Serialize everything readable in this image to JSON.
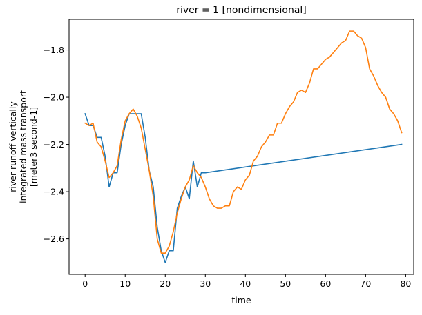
{
  "chart_data": {
    "type": "line",
    "title": "river = 1 [nondimensional]",
    "xlabel": "time",
    "ylabel": [
      "river runoff vertically",
      "integrated mass transport",
      "[meter3 second-1]"
    ],
    "xlim": [
      -4,
      82
    ],
    "ylim": [
      -2.75,
      -1.67
    ],
    "xticks": [
      0,
      10,
      20,
      30,
      40,
      50,
      60,
      70,
      80
    ],
    "yticks": [
      -2.6,
      -2.4,
      -2.2,
      -2.0,
      -1.8
    ],
    "ytick_labels": [
      "−2.6",
      "−2.4",
      "−2.2",
      "−2.0",
      "−1.8"
    ],
    "grid": false,
    "legend": false,
    "series": [
      {
        "color": "#1f77b4",
        "x": [
          0,
          1,
          2,
          3,
          4,
          5,
          6,
          7,
          8,
          9,
          10,
          11,
          12,
          13,
          14,
          15,
          16,
          17,
          18,
          19,
          20,
          21,
          22,
          23,
          24,
          25,
          26,
          27,
          28,
          29,
          30,
          79
        ],
        "y": [
          -2.07,
          -2.12,
          -2.12,
          -2.17,
          -2.17,
          -2.25,
          -2.38,
          -2.32,
          -2.32,
          -2.2,
          -2.12,
          -2.07,
          -2.07,
          -2.07,
          -2.07,
          -2.17,
          -2.31,
          -2.38,
          -2.55,
          -2.65,
          -2.7,
          -2.65,
          -2.65,
          -2.47,
          -2.42,
          -2.38,
          -2.43,
          -2.27,
          -2.38,
          -2.32,
          -2.32,
          -2.2
        ]
      },
      {
        "color": "#ff7f0e",
        "x": [
          0,
          1,
          2,
          3,
          4,
          5,
          6,
          7,
          8,
          9,
          10,
          11,
          12,
          13,
          14,
          15,
          16,
          17,
          18,
          19,
          20,
          21,
          22,
          23,
          24,
          25,
          26,
          27,
          28,
          29,
          30,
          31,
          32,
          33,
          34,
          35,
          36,
          37,
          38,
          39,
          40,
          41,
          42,
          43,
          44,
          45,
          46,
          47,
          48,
          49,
          50,
          51,
          52,
          53,
          54,
          55,
          56,
          57,
          58,
          59,
          60,
          61,
          62,
          63,
          64,
          65,
          66,
          67,
          68,
          69,
          70,
          71,
          72,
          73,
          74,
          75,
          76,
          77,
          78,
          79
        ],
        "y": [
          -2.11,
          -2.12,
          -2.11,
          -2.19,
          -2.21,
          -2.27,
          -2.34,
          -2.32,
          -2.29,
          -2.18,
          -2.1,
          -2.07,
          -2.05,
          -2.08,
          -2.13,
          -2.22,
          -2.31,
          -2.42,
          -2.6,
          -2.66,
          -2.66,
          -2.63,
          -2.57,
          -2.49,
          -2.43,
          -2.38,
          -2.35,
          -2.29,
          -2.32,
          -2.34,
          -2.38,
          -2.43,
          -2.46,
          -2.47,
          -2.47,
          -2.46,
          -2.46,
          -2.4,
          -2.38,
          -2.39,
          -2.35,
          -2.33,
          -2.27,
          -2.25,
          -2.21,
          -2.19,
          -2.16,
          -2.16,
          -2.11,
          -2.11,
          -2.07,
          -2.04,
          -2.02,
          -1.98,
          -1.97,
          -1.98,
          -1.94,
          -1.88,
          -1.88,
          -1.86,
          -1.84,
          -1.83,
          -1.81,
          -1.79,
          -1.77,
          -1.76,
          -1.72,
          -1.72,
          -1.74,
          -1.75,
          -1.79,
          -1.88,
          -1.91,
          -1.95,
          -1.98,
          -2.0,
          -2.05,
          -2.07,
          -2.1,
          -2.15
        ]
      }
    ]
  }
}
